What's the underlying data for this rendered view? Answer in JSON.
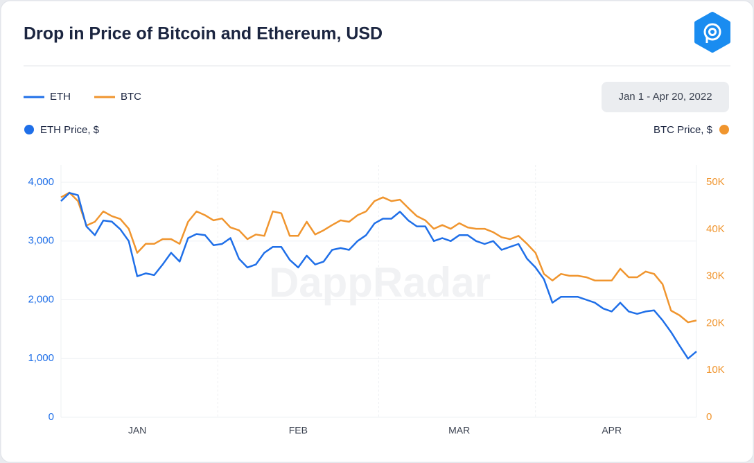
{
  "chart_data": {
    "type": "line",
    "title": "Drop in Price of Bitcoin and Ethereum, USD",
    "date_range": "Jan 1 - Apr 20, 2022",
    "y_axis_label": "ETH Price, $",
    "y2_axis_label": "BTC Price, $",
    "watermark": "DappRadar",
    "categories": [
      null,
      null,
      null,
      null,
      null,
      null,
      null,
      null,
      null,
      "JAN",
      null,
      null,
      null,
      null,
      null,
      null,
      null,
      null,
      null,
      null,
      null,
      null,
      null,
      null,
      null,
      null,
      null,
      null,
      "FEB",
      null,
      null,
      null,
      null,
      null,
      null,
      null,
      null,
      null,
      null,
      null,
      null,
      null,
      null,
      null,
      null,
      null,
      null,
      "MAR",
      null,
      null,
      null,
      null,
      null,
      null,
      null,
      null,
      null,
      null,
      null,
      null,
      null,
      null,
      null,
      null,
      null,
      "APR",
      null,
      null,
      null,
      null,
      null,
      null,
      null,
      null,
      null,
      null
    ],
    "series": [
      {
        "name": "ETH",
        "color": "#1f6fe8",
        "axis": "y",
        "values": [
          3680,
          3820,
          3780,
          3250,
          3100,
          3350,
          3330,
          3200,
          3000,
          2400,
          2450,
          2420,
          2600,
          2800,
          2650,
          3050,
          3120,
          3100,
          2930,
          2950,
          3050,
          2700,
          2550,
          2600,
          2800,
          2900,
          2900,
          2680,
          2550,
          2750,
          2600,
          2650,
          2850,
          2880,
          2850,
          3000,
          3100,
          3300,
          3380,
          3380,
          3500,
          3350,
          3250,
          3250,
          3000,
          3050,
          3000,
          3100,
          3100,
          3000,
          2950,
          3000,
          2850,
          2900,
          2950,
          2700,
          2550,
          2350,
          1950,
          2050,
          2050,
          2050,
          2000,
          1950,
          1850,
          1800,
          1950,
          1800,
          1760,
          1800,
          1820,
          1650,
          1450,
          1220,
          1000,
          1120
        ]
      },
      {
        "name": "BTC",
        "color": "#f0952e",
        "axis": "y2",
        "values": [
          46800,
          47800,
          46000,
          40800,
          41600,
          43800,
          42800,
          42200,
          40100,
          35000,
          36900,
          36900,
          37900,
          37900,
          36900,
          41600,
          43800,
          43000,
          41900,
          42300,
          40400,
          39800,
          37900,
          38900,
          38600,
          43800,
          43400,
          38600,
          38600,
          41600,
          38900,
          39800,
          40900,
          41900,
          41600,
          43000,
          43800,
          46000,
          46800,
          46000,
          46300,
          44500,
          42800,
          41900,
          40100,
          40900,
          40100,
          41300,
          40400,
          40100,
          40100,
          39400,
          38300,
          37900,
          38600,
          36900,
          35000,
          30500,
          29100,
          30500,
          30100,
          30100,
          29800,
          29100,
          29100,
          29100,
          31600,
          29800,
          29800,
          31000,
          30500,
          28300,
          22700,
          21700,
          20200,
          20600
        ]
      }
    ],
    "ylim": [
      0,
      4000
    ],
    "yticks": [
      0,
      {
        "value": 1000,
        "label": "1,000"
      },
      {
        "value": 2000,
        "label": "2,000"
      },
      {
        "value": 3000,
        "label": "3,000"
      },
      {
        "value": 4000,
        "label": "4,000"
      }
    ],
    "y2lim": [
      0,
      50000
    ],
    "y2ticks": [
      0,
      {
        "value": 10000,
        "label": "10K"
      },
      {
        "value": 20000,
        "label": "20K"
      },
      {
        "value": 30000,
        "label": "30K"
      },
      {
        "value": 40000,
        "label": "40K"
      },
      {
        "value": 50000,
        "label": "50K"
      }
    ],
    "grid": true
  }
}
